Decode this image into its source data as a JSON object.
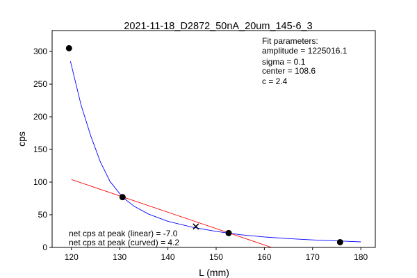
{
  "chart_data": {
    "type": "scatter",
    "title": "2021-11-18_D2872_50nA_20um_145-6_3",
    "xlabel": "L (mm)",
    "ylabel": "cps",
    "xlim": [
      116,
      183
    ],
    "ylim": [
      0,
      332
    ],
    "xticks": [
      120,
      130,
      140,
      150,
      160,
      170,
      180
    ],
    "yticks": [
      0,
      50,
      100,
      150,
      200,
      250,
      300
    ],
    "grid": false,
    "points": [
      {
        "x": 119.5,
        "y": 305
      },
      {
        "x": 130.6,
        "y": 77
      },
      {
        "x": 152.6,
        "y": 22
      },
      {
        "x": 175.7,
        "y": 8
      }
    ],
    "peak_marker": {
      "x": 145.8,
      "y": 32
    },
    "fit_parameters": {
      "heading": "Fit parameters:",
      "lines": [
        "amplitude = 1225016.1",
        "sigma = 0.1",
        "center = 108.6",
        "c = 2.4"
      ]
    },
    "net_cps_annotations": [
      "net cps at peak (linear) = -7.0",
      "net cps at peak (curved) = 4.2"
    ],
    "curve_fit": {
      "color": "#0000ff",
      "x": [
        119.8,
        122,
        124,
        126,
        128,
        130.6,
        133,
        136,
        140,
        145,
        150,
        155,
        160,
        165,
        170,
        175,
        180
      ],
      "y": [
        285,
        218,
        171,
        131,
        101,
        77,
        63,
        51,
        40,
        31,
        24.5,
        19.5,
        16,
        13.5,
        11.5,
        10,
        8.5
      ]
    },
    "linear_fit": {
      "color": "#ff0000",
      "x": [
        120,
        161.5
      ],
      "y": [
        104,
        0
      ]
    },
    "point_color": "#000000"
  }
}
